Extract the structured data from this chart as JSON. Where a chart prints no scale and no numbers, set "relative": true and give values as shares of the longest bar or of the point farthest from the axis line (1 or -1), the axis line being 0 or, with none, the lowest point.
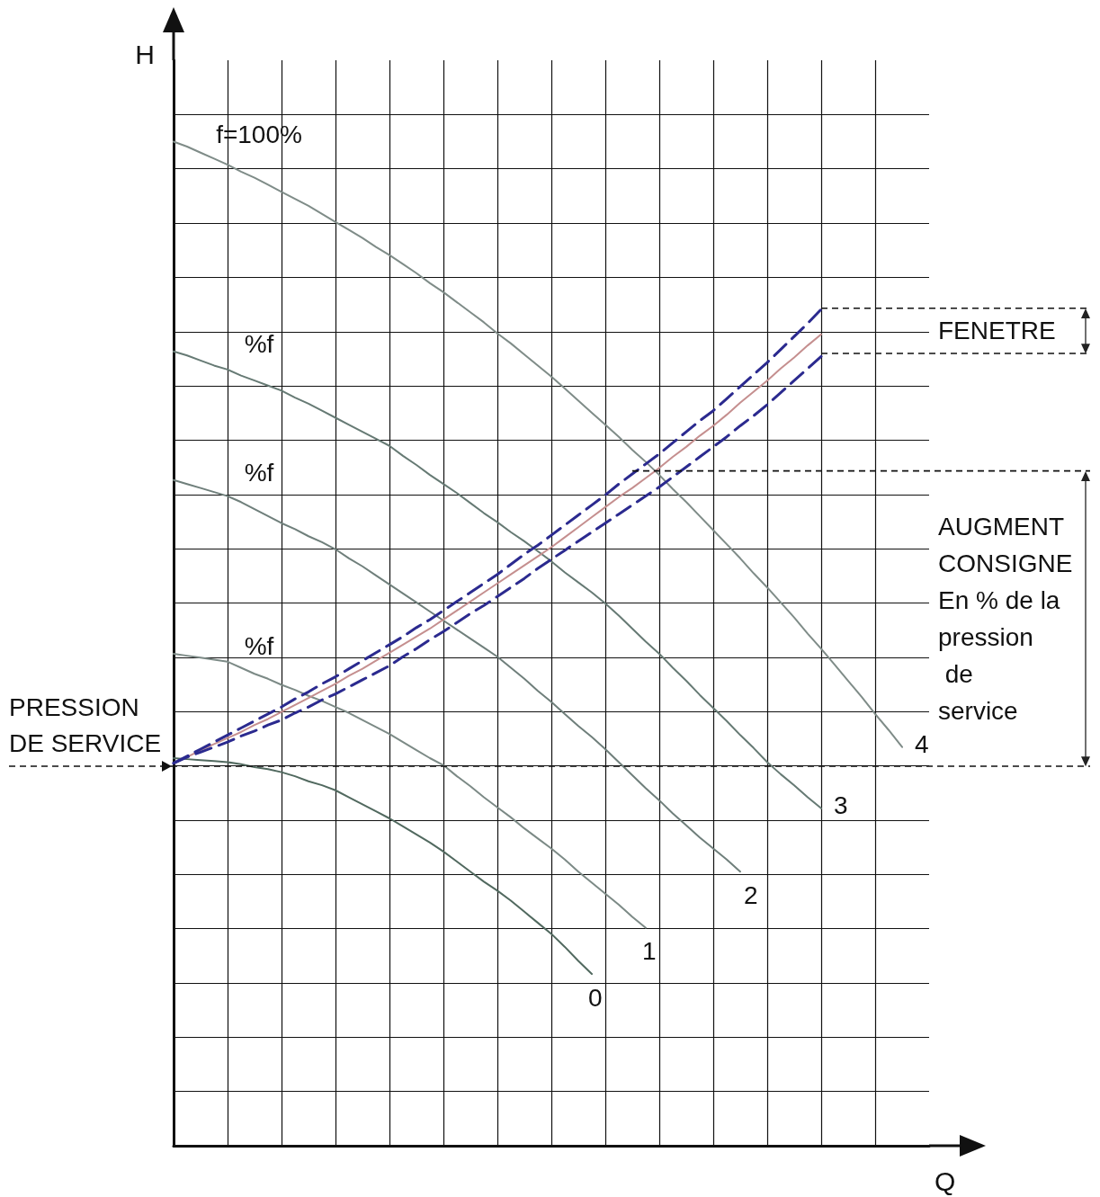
{
  "chart_data": {
    "type": "line",
    "relative": true,
    "xlabel": "Q",
    "ylabel": "H",
    "categories": [
      null,
      null,
      null,
      null,
      null,
      null,
      null,
      null,
      null,
      null,
      null,
      null,
      null,
      null,
      null,
      null,
      null,
      null,
      null,
      null,
      null,
      null,
      null,
      null,
      null,
      null,
      null,
      null,
      null,
      null,
      null,
      null,
      null,
      null,
      null,
      null,
      null,
      null,
      null,
      null,
      null,
      null,
      null,
      null,
      null,
      null,
      null,
      null,
      null,
      null,
      null,
      null,
      null,
      null,
      null,
      null,
      null
    ],
    "series": [
      {
        "name": "4",
        "color": "#7f8c88",
        "values": [
          1.0,
          0.995,
          0.989,
          0.983,
          0.977,
          0.97,
          0.964,
          0.957,
          0.95,
          0.943,
          0.936,
          0.928,
          0.92,
          0.912,
          0.904,
          0.895,
          0.887,
          0.878,
          0.869,
          0.859,
          0.85,
          0.84,
          0.83,
          0.82,
          0.809,
          0.799,
          0.788,
          0.777,
          0.766,
          0.754,
          0.742,
          0.73,
          0.718,
          0.706,
          0.693,
          0.681,
          0.668,
          0.654,
          0.641,
          0.627,
          0.613,
          0.599,
          0.585,
          0.57,
          0.556,
          0.541,
          0.526,
          0.51,
          0.495,
          0.479,
          0.463,
          0.447,
          0.43,
          0.414,
          0.397,
          null,
          null
        ]
      },
      {
        "name": "3",
        "color": "#667a74",
        "values": [
          0.791,
          0.787,
          0.782,
          0.777,
          0.773,
          0.767,
          0.762,
          0.757,
          0.752,
          0.745,
          0.739,
          0.732,
          0.725,
          0.718,
          0.711,
          0.704,
          0.697,
          0.687,
          0.678,
          0.668,
          0.659,
          0.65,
          0.64,
          0.63,
          0.621,
          0.611,
          0.602,
          0.592,
          0.582,
          0.571,
          0.561,
          0.551,
          0.54,
          0.528,
          0.515,
          0.502,
          0.49,
          0.476,
          0.463,
          0.449,
          0.436,
          0.423,
          0.409,
          0.396,
          0.382,
          0.37,
          0.359,
          0.347,
          0.336,
          null,
          null,
          null,
          null,
          null,
          null,
          null,
          null
        ]
      },
      {
        "name": "2",
        "color": "#6f7f7b",
        "values": [
          0.663,
          0.659,
          0.655,
          0.651,
          0.647,
          0.641,
          0.634,
          0.627,
          0.62,
          0.614,
          0.607,
          0.601,
          0.594,
          0.585,
          0.577,
          0.568,
          0.559,
          0.55,
          0.541,
          0.532,
          0.523,
          0.514,
          0.505,
          0.496,
          0.487,
          0.476,
          0.465,
          0.453,
          0.442,
          0.43,
          0.418,
          0.407,
          0.395,
          0.382,
          0.369,
          0.356,
          0.344,
          0.331,
          0.319,
          0.307,
          0.296,
          0.285,
          0.273,
          null,
          null,
          null,
          null,
          null,
          null,
          null,
          null,
          null,
          null,
          null,
          null,
          null,
          null
        ]
      },
      {
        "name": "1",
        "color": "#7c8a86",
        "values": [
          0.49,
          0.488,
          0.486,
          0.484,
          0.482,
          0.476,
          0.47,
          0.465,
          0.459,
          0.454,
          0.448,
          0.443,
          0.437,
          0.431,
          0.424,
          0.417,
          0.41,
          0.402,
          0.394,
          0.386,
          0.379,
          0.368,
          0.358,
          0.347,
          0.337,
          0.327,
          0.316,
          0.306,
          0.296,
          0.285,
          0.273,
          0.262,
          0.251,
          0.24,
          0.228,
          0.217,
          null,
          null,
          null,
          null,
          null,
          null,
          null,
          null,
          null,
          null,
          null,
          null,
          null,
          null,
          null,
          null,
          null,
          null,
          null,
          null,
          null
        ]
      },
      {
        "name": "0",
        "color": "#51695f",
        "values": [
          0.386,
          0.385,
          0.384,
          0.383,
          0.382,
          0.38,
          0.377,
          0.375,
          0.372,
          0.368,
          0.363,
          0.359,
          0.354,
          0.347,
          0.34,
          0.333,
          0.326,
          0.318,
          0.31,
          0.302,
          0.293,
          0.283,
          0.273,
          0.263,
          0.254,
          0.244,
          0.233,
          0.222,
          0.211,
          0.198,
          0.184,
          0.171,
          null,
          null,
          null,
          null,
          null,
          null,
          null,
          null,
          null,
          null,
          null,
          null,
          null,
          null,
          null,
          null,
          null,
          null,
          null,
          null,
          null,
          null,
          null,
          null,
          null
        ]
      },
      {
        "color": "#2b2a8f",
        "line_style": "dashed",
        "values": [
          0.381,
          0.388,
          0.395,
          0.402,
          0.409,
          0.416,
          0.423,
          0.43,
          0.437,
          0.445,
          0.452,
          0.46,
          0.467,
          0.475,
          0.483,
          0.491,
          0.499,
          0.507,
          0.516,
          0.524,
          0.533,
          0.542,
          0.551,
          0.56,
          0.569,
          0.579,
          0.589,
          0.598,
          0.608,
          0.618,
          0.628,
          0.638,
          0.648,
          0.659,
          0.669,
          0.679,
          0.689,
          0.7,
          0.711,
          0.722,
          0.732,
          0.744,
          0.756,
          0.768,
          0.78,
          0.793,
          0.806,
          0.819,
          0.833,
          null,
          null,
          null,
          null,
          null,
          null,
          null,
          null
        ]
      },
      {
        "color": "#c58f8f",
        "values": [
          0.381,
          0.387,
          0.394,
          0.4,
          0.406,
          0.412,
          0.419,
          0.425,
          0.432,
          0.439,
          0.446,
          0.453,
          0.46,
          0.468,
          0.475,
          0.483,
          0.491,
          0.499,
          0.507,
          0.515,
          0.524,
          0.533,
          0.542,
          0.551,
          0.56,
          0.569,
          0.578,
          0.587,
          0.596,
          0.606,
          0.616,
          0.626,
          0.636,
          0.646,
          0.655,
          0.665,
          0.675,
          0.686,
          0.696,
          0.707,
          0.717,
          0.728,
          0.74,
          0.751,
          0.762,
          0.774,
          0.785,
          0.797,
          0.808,
          null,
          null,
          null,
          null,
          null,
          null,
          null,
          null
        ]
      },
      {
        "color": "#2b2a8f",
        "line_style": "dashed",
        "values": [
          0.381,
          0.387,
          0.392,
          0.397,
          0.402,
          0.408,
          0.413,
          0.419,
          0.424,
          0.431,
          0.437,
          0.444,
          0.45,
          0.457,
          0.464,
          0.471,
          0.478,
          0.487,
          0.495,
          0.504,
          0.512,
          0.521,
          0.53,
          0.538,
          0.547,
          0.556,
          0.565,
          0.575,
          0.584,
          0.593,
          0.602,
          0.611,
          0.62,
          0.629,
          0.638,
          0.647,
          0.656,
          0.666,
          0.676,
          0.686,
          0.696,
          0.706,
          0.717,
          0.727,
          0.738,
          0.75,
          0.762,
          0.774,
          0.786,
          null,
          null,
          null,
          null,
          null,
          null,
          null,
          null
        ]
      }
    ],
    "annotations": [
      "f=100%",
      "%f",
      "%f",
      "%f"
    ],
    "ref_lines": [
      {
        "axis": "y",
        "value": 0.378,
        "label": "PRESSION\nDE SERVICE",
        "line_style": "dashed"
      },
      {
        "axis": "y",
        "value": 0.834,
        "label": "FENETRE",
        "line_style": "dashed"
      },
      {
        "axis": "y",
        "value": 0.789,
        "line_style": "dashed"
      },
      {
        "axis": "y",
        "value": 0.672,
        "label": "AUGMENT\nCONSIGNE\nEn % de la\npression\n de\nservice",
        "line_style": "dashed"
      }
    ],
    "grid": true,
    "legend": false,
    "marker": "none",
    "line_style": "solid"
  }
}
